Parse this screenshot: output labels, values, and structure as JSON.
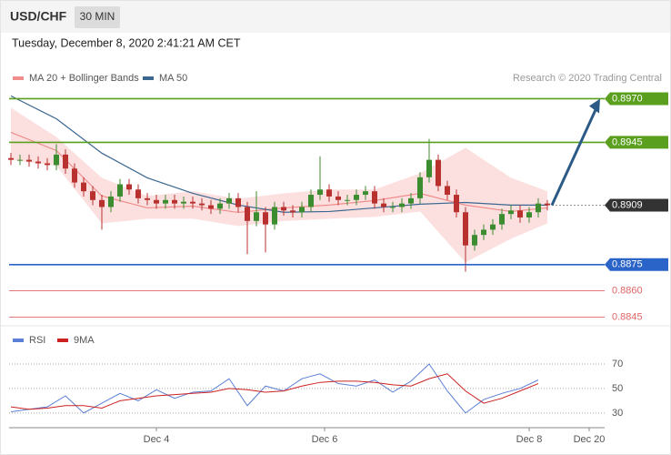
{
  "title": "USD/CHF",
  "timeframe": "30 MIN",
  "subtitle": "Tuesday, December 8, 2020 2:41:21 AM CET",
  "credit": "Research © 2020 Trading Central",
  "chart_data": [
    {
      "type": "candlestick",
      "up_color": "#3c8d2f",
      "down_color": "#b8312f",
      "open": [
        0.8936,
        0.8935,
        0.8935,
        0.8934,
        0.8933,
        0.8932,
        0.8938,
        0.893,
        0.8922,
        0.8917,
        0.8912,
        0.8908,
        0.8914,
        0.8921,
        0.8918,
        0.8913,
        0.8912,
        0.891,
        0.8912,
        0.891,
        0.8911,
        0.891,
        0.8909,
        0.8907,
        0.891,
        0.8913,
        0.8908,
        0.89,
        0.8905,
        0.8898,
        0.8908,
        0.8906,
        0.8905,
        0.8908,
        0.8915,
        0.8918,
        0.8914,
        0.8912,
        0.8912,
        0.8915,
        0.8917,
        0.891,
        0.8908,
        0.8908,
        0.891,
        0.8913,
        0.8925,
        0.8935,
        0.892,
        0.8915,
        0.8905,
        0.8886,
        0.8892,
        0.8895,
        0.8898,
        0.8904,
        0.8906,
        0.8902,
        0.8905,
        0.891
      ],
      "high": [
        0.8939,
        0.8938,
        0.8938,
        0.8937,
        0.8936,
        0.8944,
        0.8941,
        0.8933,
        0.8925,
        0.892,
        0.8915,
        0.8917,
        0.8924,
        0.8924,
        0.8921,
        0.8916,
        0.8915,
        0.8915,
        0.8915,
        0.8914,
        0.8914,
        0.8913,
        0.8912,
        0.8913,
        0.8916,
        0.8916,
        0.8911,
        0.8917,
        0.8908,
        0.8911,
        0.8911,
        0.8909,
        0.8911,
        0.8918,
        0.8937,
        0.8921,
        0.8917,
        0.8915,
        0.8918,
        0.892,
        0.892,
        0.8913,
        0.8911,
        0.8913,
        0.8916,
        0.8928,
        0.8947,
        0.8938,
        0.8923,
        0.8918,
        0.8908,
        0.8895,
        0.8898,
        0.8901,
        0.8907,
        0.8909,
        0.8909,
        0.8908,
        0.8913,
        0.8912
      ],
      "low": [
        0.8932,
        0.8932,
        0.8931,
        0.893,
        0.8929,
        0.8929,
        0.8927,
        0.8919,
        0.8914,
        0.8909,
        0.8895,
        0.8905,
        0.8911,
        0.8915,
        0.891,
        0.8909,
        0.8907,
        0.8907,
        0.8907,
        0.8907,
        0.8907,
        0.8906,
        0.8904,
        0.8904,
        0.8907,
        0.8905,
        0.8881,
        0.8897,
        0.8882,
        0.8895,
        0.8903,
        0.8902,
        0.8902,
        0.8905,
        0.8912,
        0.8911,
        0.8909,
        0.8909,
        0.8909,
        0.8912,
        0.8907,
        0.8905,
        0.8905,
        0.8905,
        0.8907,
        0.891,
        0.8922,
        0.8917,
        0.8912,
        0.8902,
        0.8871,
        0.8883,
        0.8889,
        0.8892,
        0.8895,
        0.8901,
        0.8899,
        0.8899,
        0.8902,
        0.8906
      ],
      "close": [
        0.8935,
        0.8935,
        0.8934,
        0.8933,
        0.8932,
        0.8938,
        0.893,
        0.8922,
        0.8917,
        0.8912,
        0.8908,
        0.8914,
        0.8921,
        0.8918,
        0.8913,
        0.8912,
        0.891,
        0.8912,
        0.891,
        0.8911,
        0.891,
        0.8909,
        0.8907,
        0.891,
        0.8913,
        0.8908,
        0.89,
        0.8905,
        0.8898,
        0.8908,
        0.8906,
        0.8905,
        0.8908,
        0.8915,
        0.8918,
        0.8914,
        0.8912,
        0.8912,
        0.8915,
        0.8917,
        0.891,
        0.8908,
        0.8908,
        0.891,
        0.8913,
        0.8925,
        0.8935,
        0.892,
        0.8915,
        0.8905,
        0.8886,
        0.8892,
        0.8895,
        0.8898,
        0.8904,
        0.8906,
        0.8902,
        0.8905,
        0.891,
        0.8909
      ],
      "indicator_x": [
        0,
        5,
        10,
        15,
        20,
        25,
        30,
        35,
        40,
        45,
        50,
        55,
        59
      ],
      "series": [
        {
          "name": "MA 20 + Bollinger Bands",
          "color": "#f08c8c",
          "band_color": "#fcdada",
          "values": [
            0.89507,
            0.89403,
            0.89143,
            0.89075,
            0.89085,
            0.89049,
            0.89075,
            0.89091,
            0.89117,
            0.89158,
            0.89091,
            0.89054,
            0.89075
          ],
          "upper": [
            0.89648,
            0.89481,
            0.89247,
            0.89143,
            0.8917,
            0.89127,
            0.89158,
            0.8918,
            0.8918,
            0.89273,
            0.89419,
            0.89247,
            0.8917
          ],
          "lower": [
            0.8935,
            0.89315,
            0.88986,
            0.89013,
            0.89013,
            0.88971,
            0.89,
            0.89013,
            0.89023,
            0.89054,
            0.88763,
            0.88898,
            0.88986
          ]
        },
        {
          "name": "MA 50",
          "color": "#3b6690",
          "values": [
            0.89716,
            0.89585,
            0.89388,
            0.89247,
            0.89158,
            0.89091,
            0.8905,
            0.89054,
            0.89075,
            0.89096,
            0.89106,
            0.89091,
            0.89091
          ]
        }
      ],
      "levels": [
        {
          "value": 0.897,
          "label": "0.8970",
          "color": "#5aa01e",
          "box": true,
          "style": "solid"
        },
        {
          "value": 0.8945,
          "label": "0.8945",
          "color": "#5aa01e",
          "box": true,
          "style": "solid"
        },
        {
          "value": 0.8909,
          "label": "0.8909",
          "color": "#333333",
          "box": true,
          "style": "dotted"
        },
        {
          "value": 0.8875,
          "label": "0.8875",
          "color": "#2a64c8",
          "box": true,
          "style": "solid"
        },
        {
          "value": 0.886,
          "label": "0.8860",
          "color": "#e06666",
          "box": false,
          "style": "solid"
        },
        {
          "value": 0.8845,
          "label": "0.8845",
          "color": "#e06666",
          "box": false,
          "style": "solid"
        }
      ],
      "arrow_color": "#2b5a86",
      "xlim": [
        -0.2,
        65.3
      ],
      "ylim": [
        0.884,
        0.8977
      ]
    },
    {
      "type": "line",
      "x": [
        0,
        2,
        4,
        6,
        8,
        10,
        12,
        14,
        16,
        18,
        20,
        22,
        24,
        26,
        28,
        30,
        32,
        34,
        36,
        38,
        40,
        42,
        44,
        46,
        48,
        50,
        52,
        54,
        56,
        58
      ],
      "series": [
        {
          "name": "RSI",
          "color": "#5b7fd4",
          "values": [
            31,
            33,
            35,
            44,
            30,
            38,
            46,
            40,
            49,
            42,
            47,
            48,
            58,
            36,
            52,
            48,
            58,
            62,
            54,
            52,
            57,
            47,
            56,
            70,
            48,
            30,
            41,
            46,
            50,
            57
          ]
        },
        {
          "name": "9MA",
          "color": "#cc2222",
          "values": [
            35,
            33,
            34,
            36,
            36,
            34,
            40,
            42,
            44,
            45,
            46,
            47,
            50,
            49,
            47,
            48,
            52,
            55,
            56,
            56,
            55,
            53,
            52,
            58,
            62,
            48,
            38,
            42,
            48,
            54
          ]
        }
      ],
      "xlim": [
        -0.2,
        65.3
      ],
      "ylim": [
        18,
        96
      ],
      "yticks": [
        30,
        50,
        70
      ],
      "xticks": [
        {
          "value": 16,
          "label": "Dec 4"
        },
        {
          "value": 34.5,
          "label": "Dec 6"
        },
        {
          "value": 57,
          "label": "Dec 8"
        },
        {
          "value": 63.6,
          "label": "Dec 20"
        }
      ]
    }
  ]
}
